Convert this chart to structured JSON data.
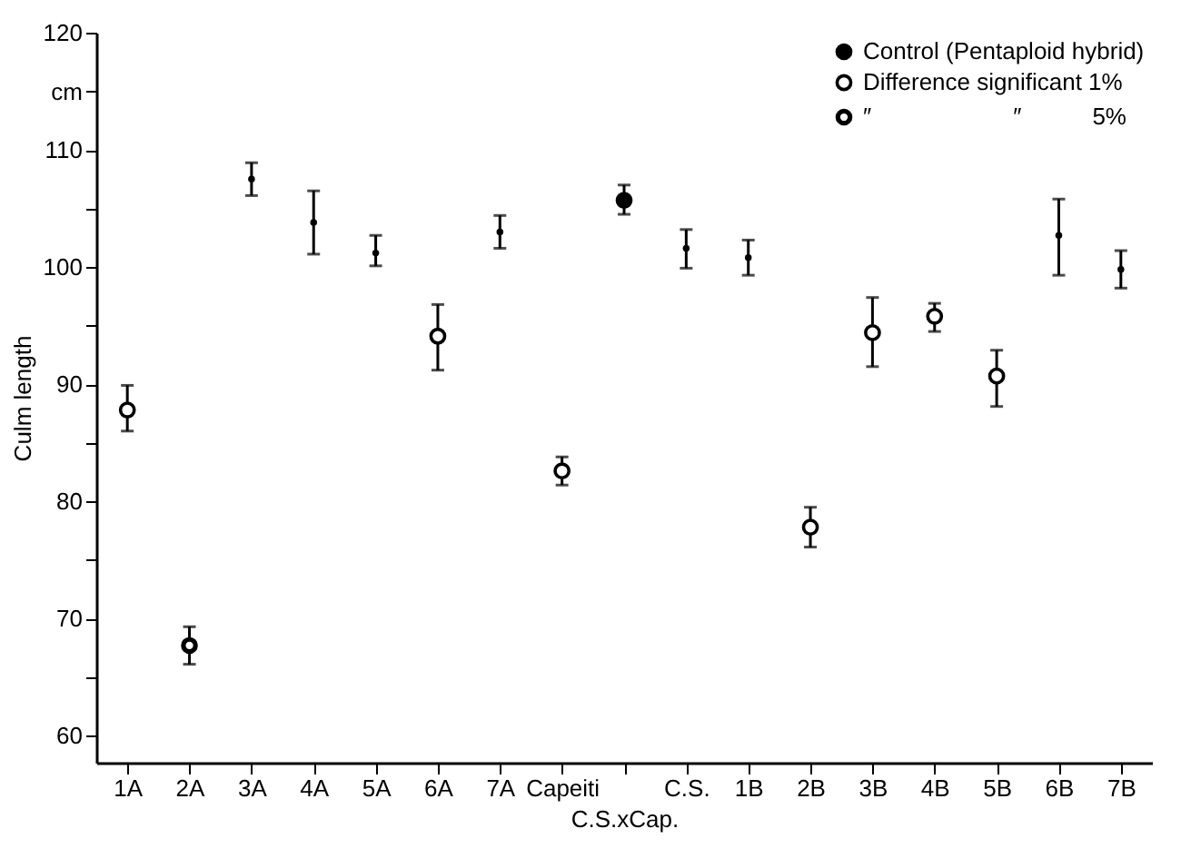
{
  "chart_data": {
    "type": "scatter",
    "xlabel": "C.S.xCap.",
    "ylabel": "Culm length",
    "categories": [
      "1A",
      "2A",
      "3A",
      "4A",
      "5A",
      "6A",
      "7A",
      "Capeiti",
      null,
      "C.S.",
      "1B",
      "2B",
      "3B",
      "4B",
      "5B",
      "6B",
      "7B"
    ],
    "ylim": [
      57.7,
      120
    ],
    "yticks": [
      60,
      {
        "value": 65,
        "label": null
      },
      70,
      {
        "value": 75,
        "label": null
      },
      80,
      {
        "value": 85,
        "label": null
      },
      90,
      {
        "value": 95,
        "label": null
      },
      100,
      {
        "value": 105,
        "label": null
      },
      110,
      {
        "value": 115,
        "label": "cm"
      },
      120
    ],
    "legend": "top right",
    "marker": "circle",
    "grid": false,
    "series": [
      {
        "color": "#000000",
        "values": [
          null,
          null,
          107.5,
          103.8,
          101.2,
          null,
          103.0,
          null,
          null,
          101.6,
          100.8,
          null,
          null,
          null,
          null,
          102.7,
          99.8
        ],
        "errors": [
          null,
          null,
          [
            106.1,
            108.9
          ],
          [
            101.1,
            106.5
          ],
          [
            100.1,
            102.7
          ],
          null,
          [
            101.6,
            104.4
          ],
          null,
          null,
          [
            99.9,
            103.2
          ],
          [
            99.3,
            102.3
          ],
          null,
          null,
          null,
          null,
          [
            99.3,
            105.8
          ],
          [
            98.2,
            101.4
          ]
        ]
      },
      {
        "name": "Control (Pentaploid hybrid)",
        "color": "#000000",
        "values": [
          null,
          null,
          null,
          null,
          null,
          null,
          null,
          null,
          105.7,
          null,
          null,
          null,
          null,
          null,
          null,
          null,
          null
        ],
        "errors": [
          null,
          null,
          null,
          null,
          null,
          null,
          null,
          null,
          [
            104.5,
            107.0
          ],
          null,
          null,
          null,
          null,
          null,
          null,
          null,
          null
        ]
      },
      {
        "name": "Difference significant 1%",
        "color": "#000000",
        "values": [
          87.8,
          null,
          null,
          null,
          null,
          94.1,
          null,
          82.6,
          null,
          null,
          null,
          77.8,
          94.4,
          95.8,
          90.7,
          null,
          null
        ],
        "errors": [
          [
            86.0,
            89.9
          ],
          null,
          null,
          null,
          null,
          [
            91.2,
            96.8
          ],
          null,
          [
            81.4,
            83.8
          ],
          null,
          null,
          null,
          [
            76.1,
            79.5
          ],
          [
            91.5,
            97.4
          ],
          [
            94.5,
            96.9
          ],
          [
            88.1,
            92.9
          ],
          null,
          null
        ]
      },
      {
        "name": " ″      ″   5%",
        "color": "#000000",
        "values": [
          null,
          67.7,
          null,
          null,
          null,
          null,
          null,
          null,
          null,
          null,
          null,
          null,
          null,
          null,
          null,
          null,
          null
        ],
        "errors": [
          null,
          [
            66.1,
            69.3
          ],
          null,
          null,
          null,
          null,
          null,
          null,
          null,
          null,
          null,
          null,
          null,
          null,
          null,
          null,
          null
        ]
      }
    ]
  }
}
